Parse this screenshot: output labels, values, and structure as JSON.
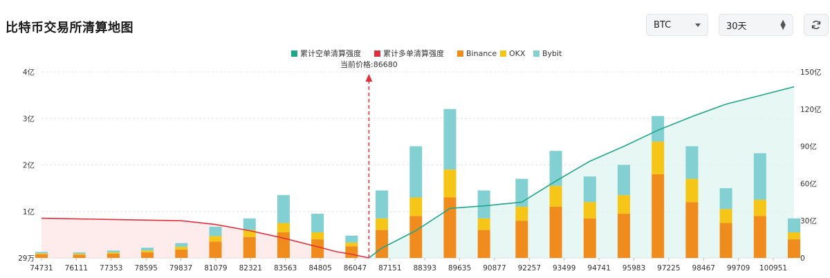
{
  "header": {
    "title": "比特币交易所清算地图",
    "coin_select": {
      "value": "BTC"
    },
    "range_select": {
      "value": "30天"
    }
  },
  "chart_data": {
    "type": "bar",
    "legend_position": "top-center",
    "series": [
      {
        "name": "累计空单清算强度",
        "kind": "line",
        "axis": "right",
        "color": "#1fa58a"
      },
      {
        "name": "累计多单清算强度",
        "kind": "line",
        "axis": "right",
        "color": "#e0303a"
      },
      {
        "name": "Binance",
        "kind": "bar",
        "axis": "left",
        "color": "#f08c1e"
      },
      {
        "name": "OKX",
        "kind": "bar",
        "axis": "left",
        "color": "#f5c518"
      },
      {
        "name": "Bybit",
        "kind": "bar",
        "axis": "left",
        "color": "#82d0d2"
      }
    ],
    "current_price_label": "当前价格:86680",
    "current_price": 86680,
    "x_tick_labels": [
      "74731",
      "76111",
      "77353",
      "78595",
      "79837",
      "81079",
      "82321",
      "83563",
      "84805",
      "86047",
      "87151",
      "88393",
      "89635",
      "90877",
      "92257",
      "93499",
      "94741",
      "95983",
      "97225",
      "98467",
      "99709",
      "100951"
    ],
    "x_range": [
      74731,
      102193
    ],
    "left_axis": {
      "range": [
        290000,
        400000000
      ],
      "tick_labels": [
        "29万",
        "1亿",
        "2亿",
        "3亿",
        "4亿"
      ],
      "tick_values": [
        290000,
        100000000,
        200000000,
        300000000,
        400000000
      ]
    },
    "right_axis": {
      "range": [
        0,
        150
      ],
      "unit": "亿",
      "tick_labels": [
        "0",
        "30亿",
        "60亿",
        "90亿",
        "120亿",
        "150亿"
      ],
      "tick_values": [
        0,
        30,
        60,
        90,
        120,
        150
      ]
    },
    "grid": "horizontal-dashed",
    "long_cumulative": {
      "x": [
        74731,
        77353,
        79837,
        81079,
        82321,
        83563,
        84805,
        85500,
        86047,
        86680
      ],
      "y": [
        32,
        31,
        30,
        27,
        22,
        16,
        9,
        5,
        3,
        0
      ]
    },
    "short_cumulative": {
      "x": [
        86680,
        87151,
        88393,
        89635,
        90877,
        92257,
        93499,
        94741,
        95983,
        97225,
        98467,
        99709,
        100951,
        102193
      ],
      "y": [
        0,
        8,
        22,
        40,
        42,
        45,
        62,
        78,
        90,
        103,
        114,
        124,
        131,
        138
      ]
    },
    "bars": {
      "x": [
        74731,
        76111,
        77353,
        78595,
        79837,
        81079,
        82321,
        83563,
        84805,
        86047,
        87151,
        88393,
        89635,
        90877,
        92257,
        93499,
        94741,
        95983,
        97225,
        98467,
        99709,
        100951,
        102193
      ],
      "binance": [
        8000000,
        7000000,
        9000000,
        12000000,
        18000000,
        35000000,
        45000000,
        55000000,
        40000000,
        25000000,
        60000000,
        90000000,
        130000000,
        60000000,
        80000000,
        110000000,
        85000000,
        95000000,
        180000000,
        120000000,
        75000000,
        90000000,
        40000000
      ],
      "okx": [
        2000000,
        2000000,
        3000000,
        4000000,
        6000000,
        12000000,
        15000000,
        20000000,
        15000000,
        8000000,
        25000000,
        40000000,
        60000000,
        25000000,
        30000000,
        45000000,
        35000000,
        40000000,
        70000000,
        50000000,
        30000000,
        35000000,
        15000000
      ],
      "bybit": [
        3000000,
        3000000,
        4000000,
        6000000,
        8000000,
        20000000,
        25000000,
        60000000,
        40000000,
        15000000,
        60000000,
        110000000,
        130000000,
        60000000,
        60000000,
        75000000,
        55000000,
        65000000,
        55000000,
        70000000,
        45000000,
        100000000,
        30000000
      ]
    }
  }
}
